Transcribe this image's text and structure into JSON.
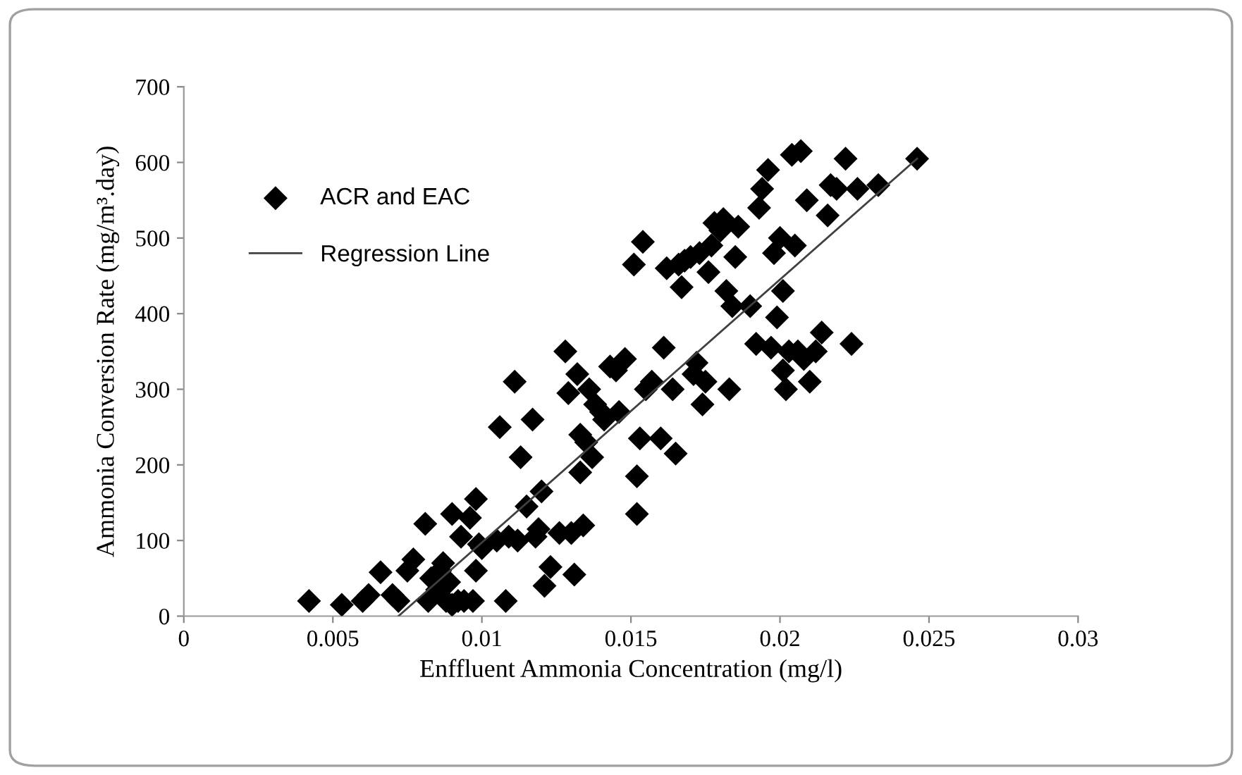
{
  "chart_data": {
    "type": "scatter",
    "xlabel": "Enffluent Ammonia Concentration (mg/l)",
    "ylabel": "Ammonia Conversion Rate (mg/m³.day)",
    "xlim": [
      0,
      0.03
    ],
    "ylim": [
      0,
      700
    ],
    "xticks": [
      0,
      0.005,
      0.01,
      0.015,
      0.02,
      0.025,
      0.03
    ],
    "yticks": [
      0,
      100,
      200,
      300,
      400,
      500,
      600,
      700
    ],
    "grid": false,
    "legend": "top left",
    "series": [
      {
        "name": "ACR and EAC",
        "marker": "diamond",
        "color": "#000000",
        "x": [
          0.0042,
          0.0053,
          0.006,
          0.0062,
          0.0066,
          0.007,
          0.0072,
          0.0075,
          0.0077,
          0.0081,
          0.0082,
          0.0083,
          0.0085,
          0.0086,
          0.0087,
          0.0088,
          0.0089,
          0.009,
          0.009,
          0.0092,
          0.0093,
          0.0094,
          0.0096,
          0.0097,
          0.0098,
          0.0098,
          0.0099,
          0.01,
          0.0105,
          0.0106,
          0.0108,
          0.0109,
          0.0111,
          0.0112,
          0.0113,
          0.0115,
          0.0117,
          0.0118,
          0.0119,
          0.012,
          0.0121,
          0.0123,
          0.0126,
          0.0128,
          0.0129,
          0.013,
          0.0131,
          0.0132,
          0.0133,
          0.0133,
          0.0134,
          0.0135,
          0.0136,
          0.0137,
          0.0138,
          0.014,
          0.0141,
          0.0143,
          0.0145,
          0.0146,
          0.0148,
          0.0151,
          0.0152,
          0.0152,
          0.0153,
          0.0154,
          0.0155,
          0.0157,
          0.016,
          0.0161,
          0.0162,
          0.0164,
          0.0165,
          0.0166,
          0.0167,
          0.0168,
          0.017,
          0.0171,
          0.0172,
          0.0173,
          0.0174,
          0.0175,
          0.0176,
          0.0177,
          0.0178,
          0.018,
          0.0181,
          0.0182,
          0.0183,
          0.0184,
          0.0185,
          0.0186,
          0.019,
          0.0192,
          0.0193,
          0.0194,
          0.0196,
          0.0197,
          0.0198,
          0.0199,
          0.02,
          0.0201,
          0.0201,
          0.0202,
          0.0203,
          0.0204,
          0.0205,
          0.0206,
          0.0207,
          0.0208,
          0.0209,
          0.021,
          0.0212,
          0.0214,
          0.0216,
          0.0217,
          0.0219,
          0.0222,
          0.0224,
          0.0226,
          0.0233,
          0.0246
        ],
        "values": [
          20,
          15,
          20,
          28,
          58,
          28,
          20,
          60,
          75,
          122,
          20,
          50,
          35,
          60,
          70,
          20,
          45,
          135,
          15,
          20,
          105,
          20,
          130,
          20,
          155,
          60,
          95,
          90,
          100,
          250,
          20,
          105,
          310,
          100,
          210,
          145,
          260,
          105,
          115,
          165,
          40,
          65,
          110,
          350,
          295,
          110,
          55,
          320,
          190,
          240,
          120,
          230,
          300,
          210,
          280,
          270,
          260,
          330,
          325,
          270,
          340,
          465,
          135,
          185,
          235,
          495,
          300,
          310,
          235,
          355,
          460,
          300,
          215,
          465,
          435,
          470,
          475,
          320,
          335,
          480,
          280,
          310,
          455,
          490,
          520,
          510,
          525,
          430,
          300,
          410,
          475,
          515,
          410,
          360,
          540,
          565,
          590,
          355,
          480,
          395,
          500,
          325,
          430,
          300,
          350,
          610,
          490,
          350,
          615,
          340,
          550,
          310,
          350,
          375,
          530,
          570,
          565,
          605,
          360,
          565,
          570,
          605
        ]
      },
      {
        "name": "Regression Line",
        "type": "line",
        "color": "#404040",
        "line_style": "solid",
        "x": [
          0.0072,
          0.0246
        ],
        "values": [
          0,
          605
        ]
      }
    ]
  }
}
